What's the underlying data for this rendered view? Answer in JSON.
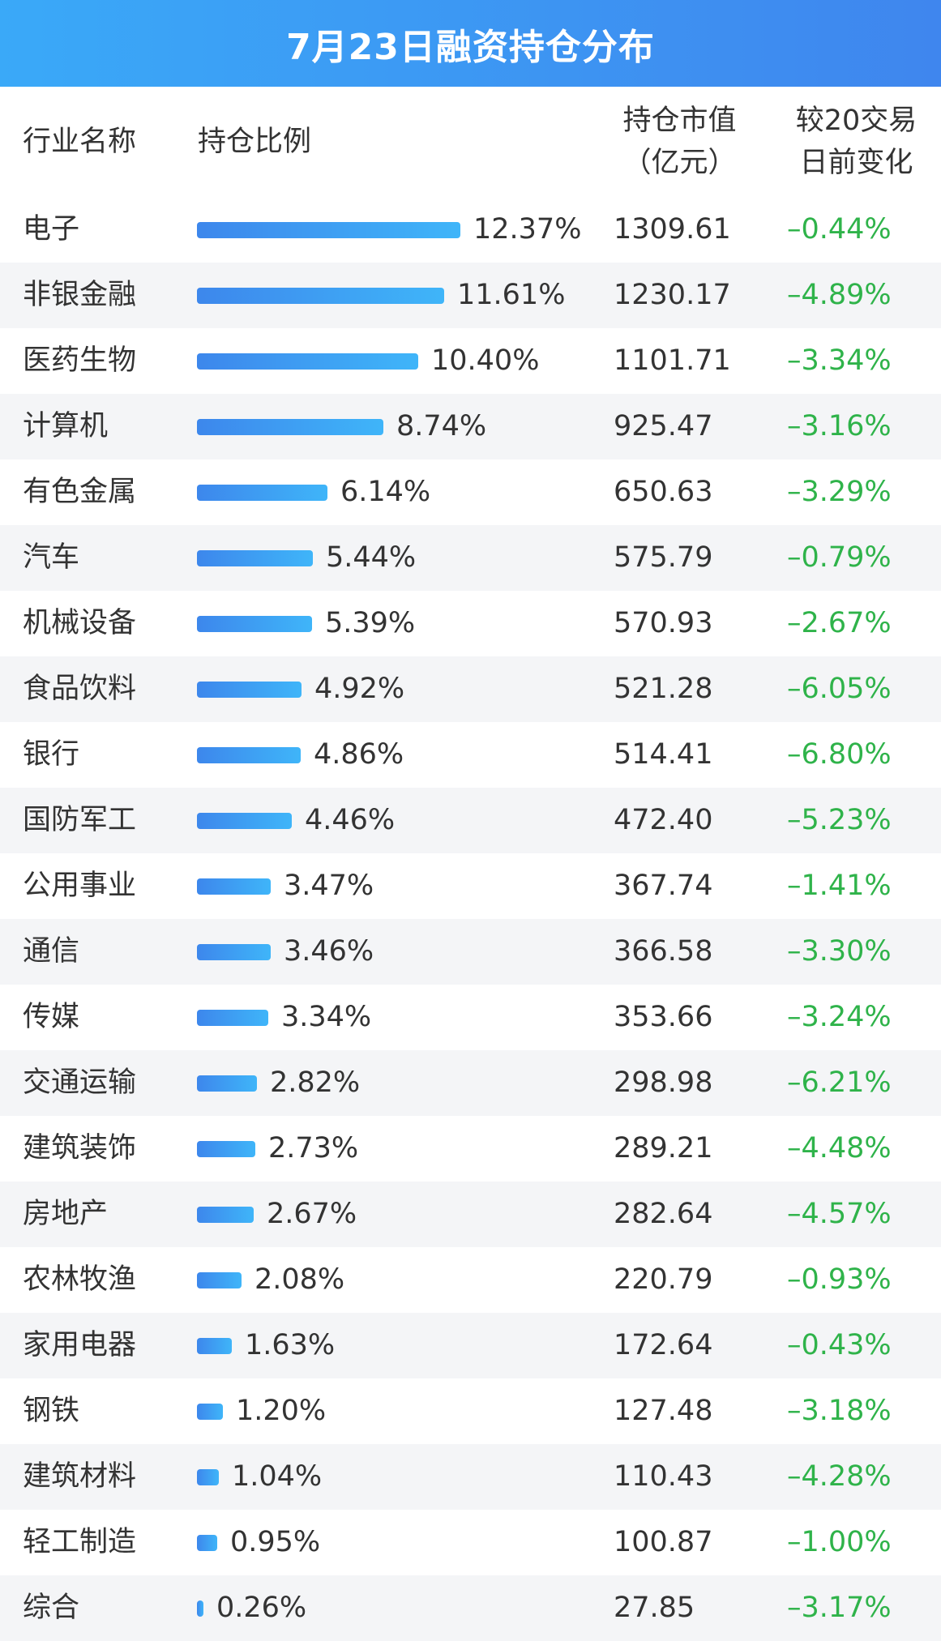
{
  "title": "7月23日融资持仓分布",
  "colors": {
    "header_gradient_start": "#3aa9f8",
    "header_gradient_end": "#3f86ee",
    "bar_gradient_start": "#3d87ec",
    "bar_gradient_end": "#3fb5f9",
    "change_color": "#2fb34a",
    "alt_row": "#f4f5f7"
  },
  "columns": {
    "industry": "行业名称",
    "ratio": "持仓比例",
    "value_line1": "持仓市值",
    "value_line2": "（亿元）",
    "change_line1": "较20交易",
    "change_line2": "日前变化"
  },
  "chart_data": {
    "type": "bar",
    "title": "7月23日融资持仓分布",
    "categories": [
      "电子",
      "非银金融",
      "医药生物",
      "计算机",
      "有色金属",
      "汽车",
      "机械设备",
      "食品饮料",
      "银行",
      "国防军工",
      "公用事业",
      "通信",
      "传媒",
      "交通运输",
      "建筑装饰",
      "房地产",
      "农林牧渔",
      "家用电器",
      "钢铁",
      "建筑材料",
      "轻工制造",
      "综合"
    ],
    "ratio_values": [
      12.37,
      11.61,
      10.4,
      8.74,
      6.14,
      5.44,
      5.39,
      4.92,
      4.86,
      4.46,
      3.47,
      3.46,
      3.34,
      2.82,
      2.73,
      2.67,
      2.08,
      1.63,
      1.2,
      1.04,
      0.95,
      0.26
    ],
    "ratio_labels": [
      "12.37%",
      "11.61%",
      "10.40%",
      "8.74%",
      "6.14%",
      "5.44%",
      "5.39%",
      "4.92%",
      "4.86%",
      "4.46%",
      "3.47%",
      "3.46%",
      "3.34%",
      "2.82%",
      "2.73%",
      "2.67%",
      "2.08%",
      "1.63%",
      "1.20%",
      "1.04%",
      "0.95%",
      "0.26%"
    ],
    "market_value": [
      "1309.61",
      "1230.17",
      "1101.71",
      "925.47",
      "650.63",
      "575.79",
      "570.93",
      "521.28",
      "514.41",
      "472.40",
      "367.74",
      "366.58",
      "353.66",
      "298.98",
      "289.21",
      "282.64",
      "220.79",
      "172.64",
      "127.48",
      "110.43",
      "100.87",
      "27.85"
    ],
    "change_20d": [
      "–0.44%",
      "–4.89%",
      "–3.34%",
      "–3.16%",
      "–3.29%",
      "–0.79%",
      "–2.67%",
      "–6.05%",
      "–6.80%",
      "–5.23%",
      "–1.41%",
      "–3.30%",
      "–3.24%",
      "–6.21%",
      "–4.48%",
      "–4.57%",
      "–0.93%",
      "–0.43%",
      "–3.18%",
      "–4.28%",
      "–1.00%",
      "–3.17%"
    ],
    "xlim": [
      0,
      12.37
    ]
  }
}
